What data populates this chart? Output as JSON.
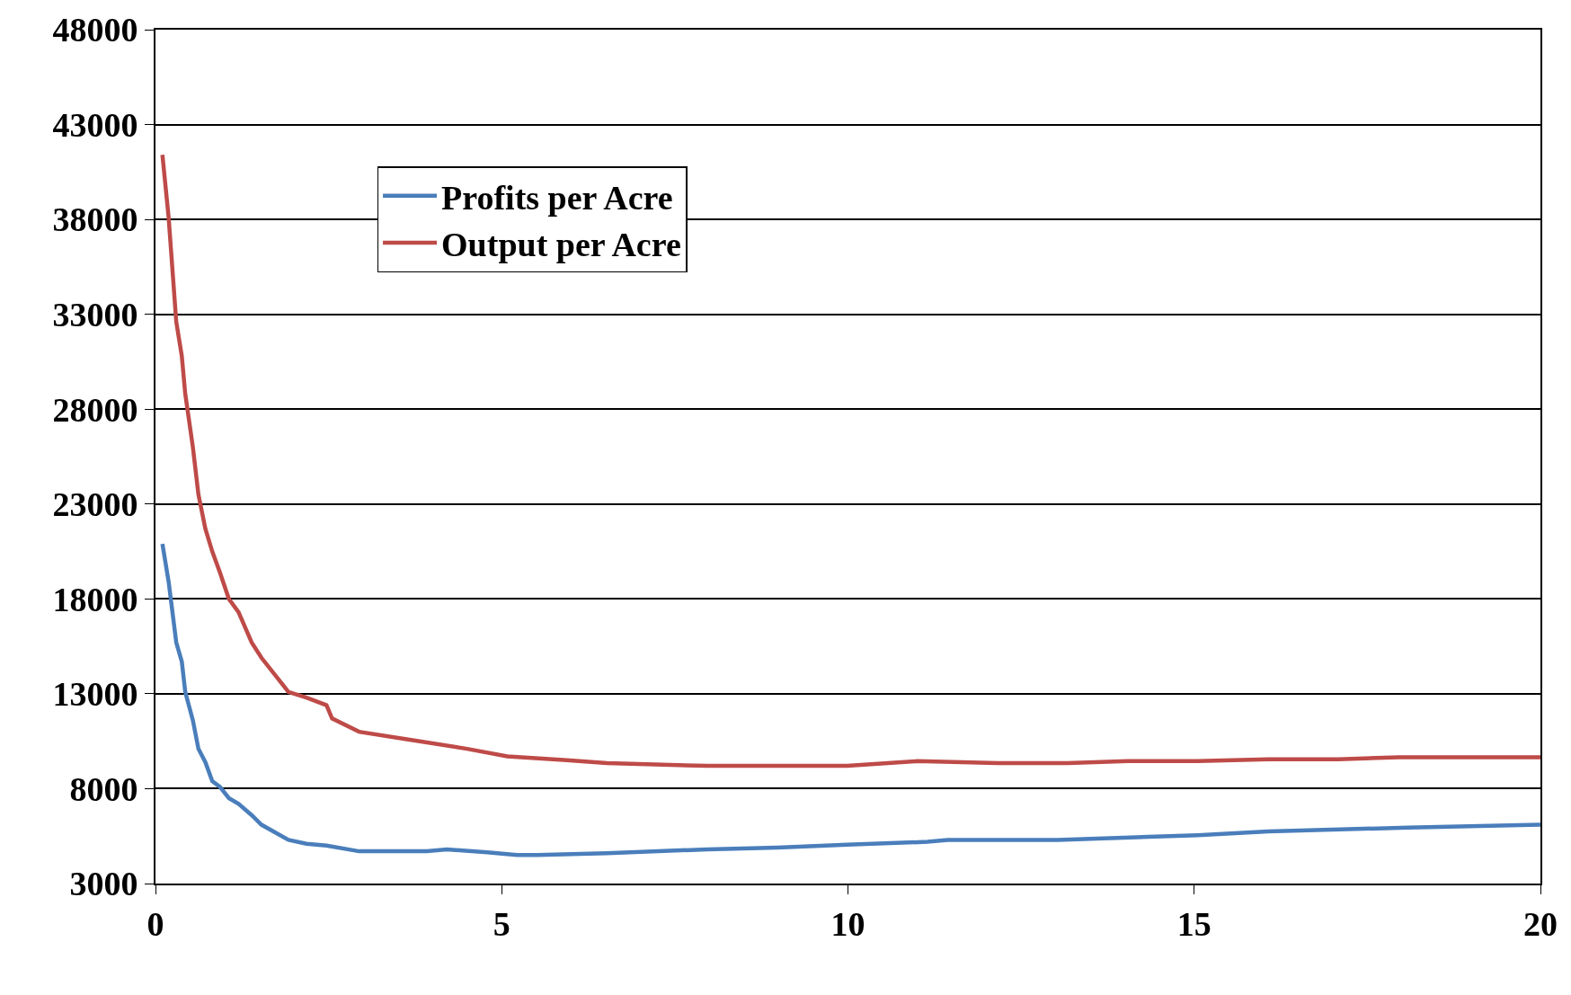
{
  "chart_data": {
    "type": "line",
    "xlim": [
      0,
      20
    ],
    "xticks": [
      0,
      5,
      10,
      15,
      20
    ],
    "ylim": [
      3000,
      48000
    ],
    "yticks": [
      3000,
      8000,
      13000,
      18000,
      23000,
      28000,
      33000,
      38000,
      43000,
      48000
    ],
    "grid": "y",
    "legend": "top left",
    "marker": "none",
    "line_style": "solid",
    "series": [
      {
        "name": "Profits per Acre",
        "color": "#4a7ebb",
        "x": [
          0.1,
          0.19,
          0.3,
          0.38,
          0.43,
          0.54,
          0.62,
          0.72,
          0.82,
          0.93,
          1.06,
          1.2,
          1.39,
          1.53,
          1.92,
          2.18,
          2.47,
          2.94,
          3.92,
          4.21,
          4.79,
          5.22,
          5.51,
          6.52,
          7.97,
          8.98,
          9.99,
          11.15,
          11.44,
          13.03,
          15.05,
          16.07,
          18.09,
          20
        ],
        "values": [
          20900,
          18900,
          15700,
          14700,
          13100,
          11600,
          10100,
          9400,
          8400,
          8100,
          7500,
          7200,
          6600,
          6100,
          5300,
          5100,
          5000,
          4700,
          4700,
          4800,
          4650,
          4500,
          4500,
          4600,
          4800,
          4900,
          5050,
          5200,
          5300,
          5300,
          5550,
          5750,
          5950,
          6100
        ]
      },
      {
        "name": "Output per Acre",
        "color": "#be4b48",
        "x": [
          0.1,
          0.19,
          0.3,
          0.38,
          0.43,
          0.54,
          0.62,
          0.72,
          0.82,
          0.93,
          1.06,
          1.2,
          1.39,
          1.53,
          1.92,
          2.18,
          2.47,
          2.55,
          2.94,
          3.63,
          4.5,
          5.08,
          5.94,
          6.52,
          7.97,
          9.99,
          11.0,
          12.16,
          13.17,
          14.04,
          15.05,
          16.07,
          17.08,
          17.95,
          20
        ],
        "values": [
          41400,
          38100,
          32600,
          30800,
          28800,
          26000,
          23500,
          21700,
          20500,
          19400,
          18000,
          17300,
          15700,
          14900,
          13100,
          12800,
          12400,
          11700,
          11000,
          10600,
          10100,
          9700,
          9500,
          9350,
          9200,
          9200,
          9450,
          9350,
          9350,
          9450,
          9450,
          9550,
          9550,
          9650,
          9650
        ]
      }
    ]
  }
}
